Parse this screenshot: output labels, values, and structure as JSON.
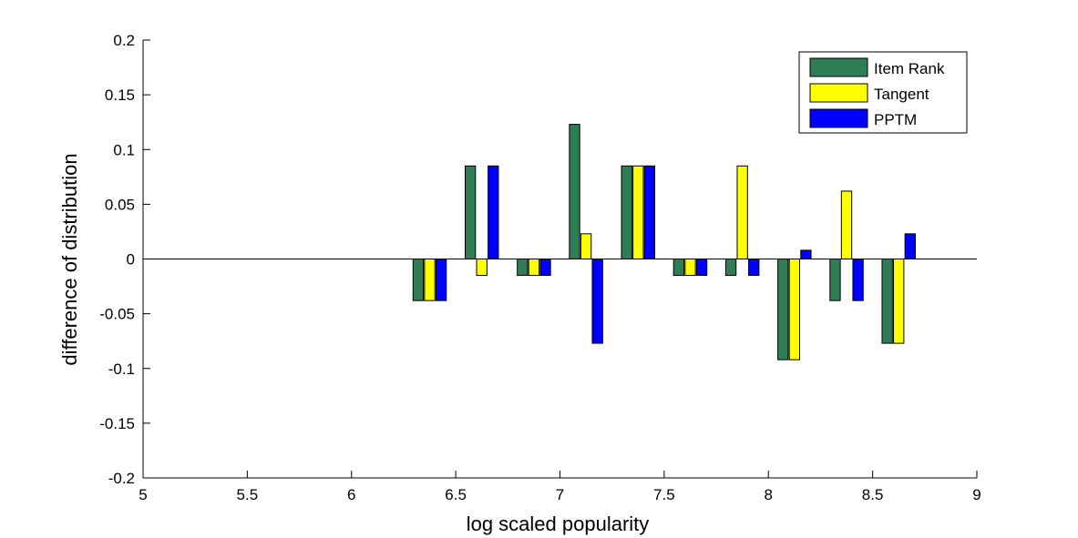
{
  "chart_data": {
    "type": "bar",
    "title": "",
    "xlabel": "log scaled popularity",
    "ylabel": "difference of distribution",
    "xlim": [
      5,
      9
    ],
    "ylim": [
      -0.2,
      0.2
    ],
    "xticks": [
      "5",
      "5.5",
      "6",
      "6.5",
      "7",
      "7.5",
      "8",
      "8.5",
      "9"
    ],
    "yticks": [
      "-0.2",
      "-0.15",
      "-0.1",
      "-0.05",
      "0",
      "0.05",
      "0.1",
      "0.15",
      "0.2"
    ],
    "grid": false,
    "legend_position": "top-right",
    "x": [
      6.375,
      6.625,
      6.875,
      7.125,
      7.375,
      7.625,
      7.875,
      8.125,
      8.375,
      8.625
    ],
    "series": [
      {
        "name": "Item Rank",
        "color": "#2e7d55",
        "values": [
          -0.038,
          0.085,
          -0.015,
          0.123,
          0.085,
          -0.015,
          -0.015,
          -0.092,
          -0.038,
          -0.077
        ]
      },
      {
        "name": "Tangent",
        "color": "#ffff00",
        "values": [
          -0.038,
          -0.015,
          -0.015,
          0.023,
          0.085,
          -0.015,
          0.085,
          -0.092,
          0.062,
          -0.077
        ]
      },
      {
        "name": "PPTM",
        "color": "#0000ff",
        "values": [
          -0.038,
          0.085,
          -0.015,
          -0.077,
          0.085,
          -0.015,
          -0.015,
          0.008,
          -0.038,
          0.023
        ]
      }
    ]
  }
}
